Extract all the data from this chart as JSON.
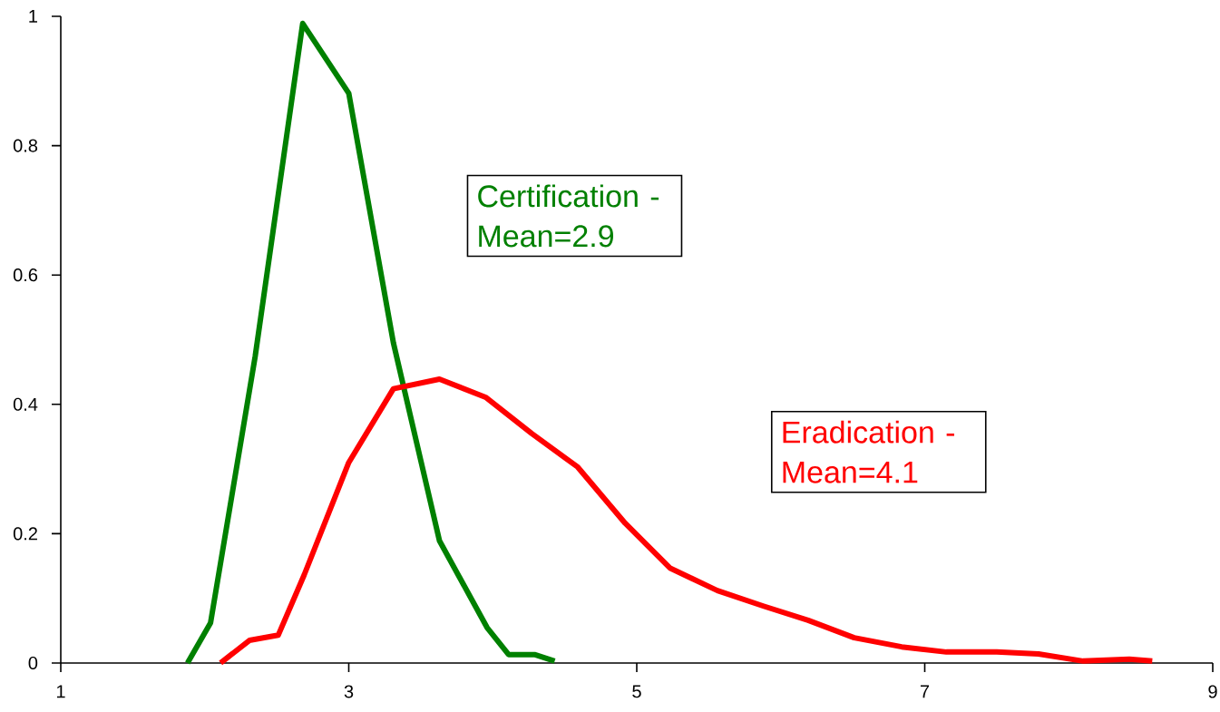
{
  "chart_data": {
    "type": "line",
    "xlim": [
      1,
      9
    ],
    "ylim": [
      0,
      1
    ],
    "xticks": [
      1,
      3,
      5,
      7,
      9
    ],
    "yticks": [
      0,
      0.2,
      0.4,
      0.6,
      0.8,
      1
    ],
    "grid": false,
    "marker": "none",
    "line_style": "solid",
    "series": [
      {
        "color": "#008000",
        "x": [
          1.88,
          2.04,
          2.35,
          2.68,
          3.0,
          3.31,
          3.63,
          3.96,
          4.11,
          4.29,
          4.43
        ],
        "values": [
          0,
          0.062,
          0.474,
          0.989,
          0.881,
          0.495,
          0.189,
          0.055,
          0.013,
          0.013,
          0.003
        ]
      },
      {
        "color": "#ff0000",
        "x": [
          2.11,
          2.31,
          2.51,
          2.69,
          3.0,
          3.31,
          3.63,
          3.95,
          4.27,
          4.59,
          4.92,
          5.23,
          5.56,
          5.88,
          6.19,
          6.51,
          6.84,
          7.15,
          7.5,
          7.79,
          8.1,
          8.42,
          8.58
        ],
        "values": [
          0,
          0.035,
          0.043,
          0.136,
          0.31,
          0.424,
          0.439,
          0.411,
          0.355,
          0.303,
          0.216,
          0.147,
          0.112,
          0.088,
          0.066,
          0.039,
          0.025,
          0.017,
          0.017,
          0.014,
          0.003,
          0.006,
          0.003
        ]
      }
    ],
    "annotations": [
      "Certification - Mean=2.9",
      "Eradication - Mean=4.1"
    ]
  }
}
